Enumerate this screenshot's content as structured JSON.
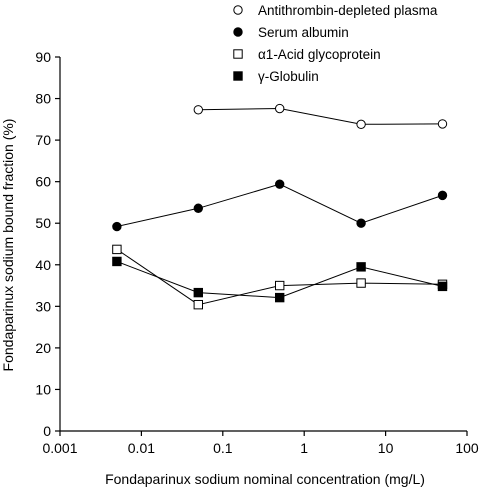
{
  "chart_data": {
    "type": "line",
    "xlabel": "Fondaparinux sodium nominal concentration (mg/L)",
    "ylabel": "Fondaparinux sodium bound fraction (%)",
    "x_scale": "log",
    "xlim": [
      0.001,
      100
    ],
    "ylim": [
      0,
      90
    ],
    "x_tick_labels": [
      "0.001",
      "0.01",
      "0.1",
      "1",
      "10",
      "100"
    ],
    "y_tick_labels": [
      "0",
      "10",
      "20",
      "30",
      "40",
      "50",
      "60",
      "70",
      "80",
      "90"
    ],
    "grid": false,
    "legend_position": "top-right",
    "series": [
      {
        "name": "Antithrombin-depleted plasma",
        "marker": "open-circle",
        "x": [
          0.05,
          0.5,
          5,
          50
        ],
        "y": [
          77.3,
          77.6,
          73.8,
          73.9
        ]
      },
      {
        "name": "Serum albumin",
        "marker": "filled-circle",
        "x": [
          0.005,
          0.05,
          0.5,
          5,
          50
        ],
        "y": [
          49.2,
          53.6,
          59.4,
          50.0,
          56.7
        ]
      },
      {
        "name": "α1-Acid glycoprotein",
        "marker": "open-square",
        "x": [
          0.005,
          0.05,
          0.5,
          5,
          50
        ],
        "y": [
          43.7,
          30.4,
          35.0,
          35.6,
          35.3
        ]
      },
      {
        "name": "γ-Globulin",
        "marker": "filled-square",
        "x": [
          0.005,
          0.05,
          0.5,
          5,
          50
        ],
        "y": [
          40.8,
          33.3,
          32.1,
          39.5,
          34.8
        ]
      }
    ]
  }
}
